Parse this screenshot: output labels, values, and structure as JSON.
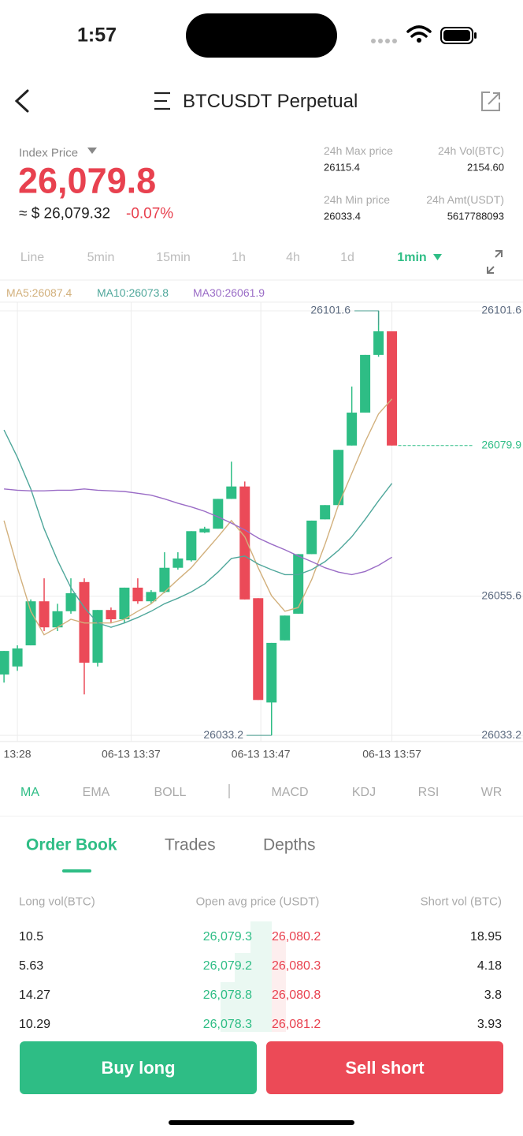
{
  "status_bar": {
    "time": "1:57"
  },
  "header": {
    "title": "BTCUSDT Perpetual"
  },
  "ticker": {
    "index_label": "Index Price",
    "price": "26,079.8",
    "usd": "≈ $ 26,079.32",
    "change": "-0.07%",
    "stats": [
      {
        "label": "24h Max price",
        "value": "26115.4"
      },
      {
        "label": "24h Vol(BTC)",
        "value": "2154.60"
      },
      {
        "label": "24h Min price",
        "value": "26033.4"
      },
      {
        "label": "24h Amt(USDT)",
        "value": "5617788093"
      }
    ]
  },
  "intervals": {
    "items": [
      "Line",
      "5min",
      "15min",
      "1h",
      "4h",
      "1d",
      "1min"
    ],
    "active": 6
  },
  "chart_data": {
    "type": "candlestick",
    "series": [
      {
        "name": "MA5:26087.4",
        "color": "#d2b07c",
        "values": [
          26067.8,
          26060.2,
          26053.2,
          26049.4,
          26050.6,
          26051.9,
          26051.3,
          26051.3,
          26051.3,
          26051.9,
          26053.2,
          26054.4,
          26056.3,
          26058.3,
          26060.2,
          26062.7,
          26065.2,
          26067.8,
          26065.2,
          26060.2,
          26055.7,
          26053.2,
          26053.8,
          26058.3,
          26064.0,
          26070.3,
          26075.4,
          26080.5,
          26085.0,
          26087.4
        ]
      },
      {
        "name": "MA10:26073.8",
        "color": "#4fa79b",
        "values": [
          26082.4,
          26078.0,
          26072.9,
          26066.5,
          26061.4,
          26057.0,
          26053.8,
          26051.3,
          26050.6,
          26051.3,
          26052.2,
          26053.2,
          26054.4,
          26055.3,
          26056.3,
          26057.6,
          26059.5,
          26061.7,
          26062.1,
          26060.8,
          26059.9,
          26059.1,
          26059.1,
          26059.9,
          26061.2,
          26063.0,
          26065.2,
          26068.0,
          26071.0,
          26073.8
        ]
      },
      {
        "name": "MA30:26061.9",
        "color": "#9a6cc6",
        "values": [
          26072.9,
          26072.7,
          26072.6,
          26072.6,
          26072.7,
          26072.7,
          26072.9,
          26072.7,
          26072.6,
          26072.5,
          26072.2,
          26071.9,
          26071.3,
          26070.6,
          26070.0,
          26069.3,
          26068.4,
          26067.4,
          26066.3,
          26065.0,
          26064.0,
          26063.1,
          26062.1,
          26061.2,
          26060.2,
          26059.5,
          26059.1,
          26059.6,
          26060.6,
          26061.9
        ]
      }
    ],
    "open": [
      26043.0,
      26044.3,
      26047.7,
      26054.8,
      26050.6,
      26053.2,
      26057.9,
      26044.9,
      26053.4,
      26051.9,
      26057.0,
      26054.8,
      26056.3,
      26060.2,
      26061.4,
      26065.9,
      26066.5,
      26071.3,
      26073.3,
      26055.3,
      26038.5,
      26048.5,
      26052.8,
      26062.4,
      26068.0,
      26070.3,
      26079.9,
      26085.2,
      26094.5,
      26098.3
    ],
    "high": [
      26046.8,
      26047.7,
      26055.1,
      26058.5,
      26054.4,
      26058.5,
      26058.5,
      26053.4,
      26053.8,
      26057.0,
      26058.5,
      26056.6,
      26062.7,
      26062.7,
      26066.1,
      26066.8,
      26071.3,
      26077.3,
      26074.1,
      26055.3,
      26048.1,
      26052.5,
      26062.4,
      26067.8,
      26070.3,
      26079.2,
      26089.4,
      26094.5,
      26101.6,
      26098.3
    ],
    "low": [
      26041.7,
      26043.6,
      26047.7,
      26050.0,
      26050.0,
      26052.8,
      26039.8,
      26044.3,
      26051.3,
      26051.3,
      26054.4,
      26054.4,
      26056.1,
      26059.9,
      26061.2,
      26065.8,
      26066.5,
      26071.3,
      26055.1,
      26038.9,
      26033.2,
      26048.5,
      26052.8,
      26062.4,
      26068.0,
      26070.3,
      26079.9,
      26085.2,
      26094.2,
      26079.9
    ],
    "close": [
      26046.8,
      26047.2,
      26054.8,
      26050.6,
      26053.2,
      26056.1,
      26044.9,
      26053.4,
      26051.9,
      26057.0,
      26054.8,
      26056.3,
      26060.2,
      26061.7,
      26066.1,
      26066.5,
      26071.3,
      26073.3,
      26055.1,
      26038.9,
      26048.1,
      26052.5,
      26062.4,
      26067.8,
      26070.3,
      26079.2,
      26085.2,
      26094.5,
      26098.3,
      26079.9
    ],
    "up_color": "#2ebd85",
    "down_color": "#eb4a58",
    "ylim": [
      26032.2,
      26103.0
    ],
    "yticks": [
      26101.6,
      26055.6,
      26033.2
    ],
    "xlim": [
      -0.3,
      38.8
    ],
    "xticks": [
      {
        "value": 1,
        "label": "13:28"
      },
      {
        "value": 9.5,
        "label": "06-13 13:37"
      },
      {
        "value": 19.2,
        "label": "06-13 13:47"
      },
      {
        "value": 29,
        "label": "06-13 13:57"
      }
    ],
    "high_marker": 26101.6,
    "low_marker": 26033.2,
    "last_price": 26079.9,
    "grid": true
  },
  "indicators": {
    "items": [
      "MA",
      "EMA",
      "BOLL",
      "MACD",
      "KDJ",
      "RSI",
      "WR"
    ],
    "active": 0
  },
  "order_book": {
    "tabs": [
      "Order Book",
      "Trades",
      "Depths"
    ],
    "active": 0,
    "columns": [
      "Long vol(BTC)",
      "Open avg price (USDT)",
      "Short vol (BTC)"
    ],
    "rows": [
      [
        "10.5",
        "26,079.3",
        "26,080.2",
        "18.95"
      ],
      [
        "5.63",
        "26,079.2",
        "26,080.3",
        "4.18"
      ],
      [
        "14.27",
        "26,078.8",
        "26,080.8",
        "3.8"
      ],
      [
        "10.29",
        "26,078.3",
        "26,081.2",
        "3.93"
      ]
    ]
  },
  "buttons": {
    "buy": "Buy long",
    "sell": "Sell short"
  }
}
